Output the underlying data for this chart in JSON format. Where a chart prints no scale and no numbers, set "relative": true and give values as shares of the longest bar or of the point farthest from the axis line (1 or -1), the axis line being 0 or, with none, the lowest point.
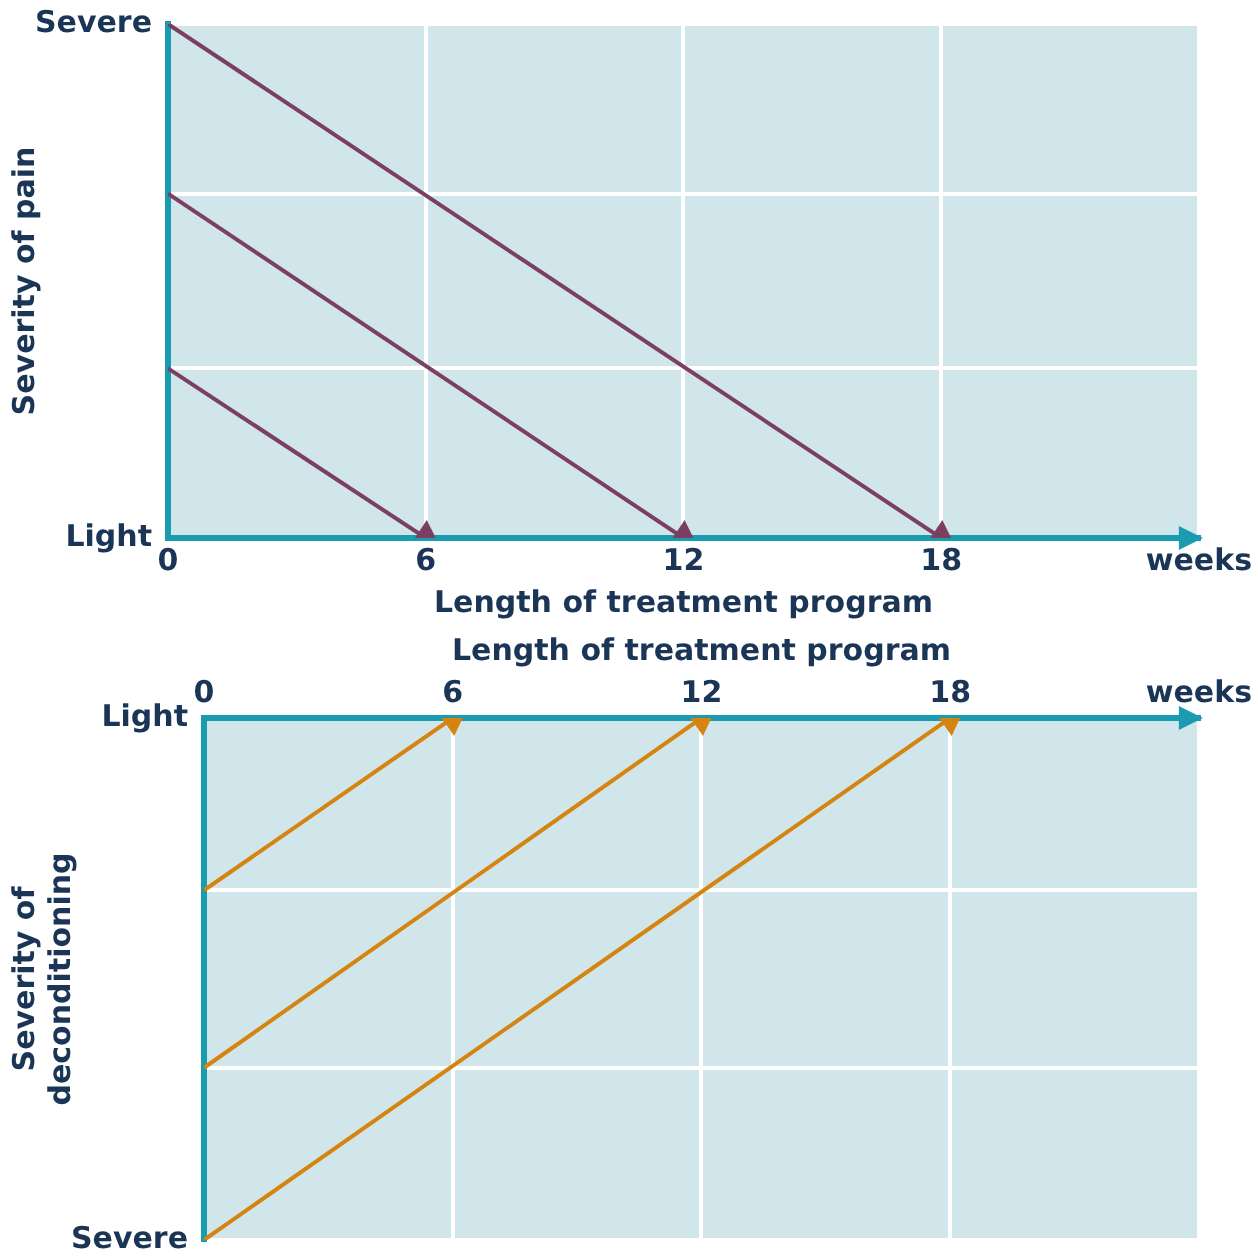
{
  "chart_data": [
    {
      "type": "line",
      "ylabel": "Severity of pain",
      "xlabel": "Length of treatment program",
      "xlim": [
        0,
        24
      ],
      "xticks": [
        0,
        6,
        12,
        18,
        {
          "value": 24,
          "label": "weeks"
        }
      ],
      "relative": true,
      "grid": true,
      "legend": false,
      "marker": "triangle",
      "line_style": "solid",
      "annotations": [
        "Severe",
        "Light"
      ],
      "series": [
        {
          "color": "#7b3f61",
          "x": [
            0,
            6
          ],
          "values": [
            0.33,
            0
          ]
        },
        {
          "color": "#7b3f61",
          "x": [
            0,
            12
          ],
          "values": [
            0.67,
            0
          ]
        },
        {
          "color": "#7b3f61",
          "x": [
            0,
            18
          ],
          "values": [
            1,
            0
          ]
        }
      ]
    },
    {
      "type": "line",
      "ylabel": "Severity of\ndeconditioning",
      "xlabel": "Length of treatment program",
      "xlim": [
        0,
        24
      ],
      "xticks": [
        0,
        6,
        12,
        18,
        {
          "value": 24,
          "label": "weeks"
        }
      ],
      "relative": true,
      "grid": true,
      "legend": false,
      "marker": "triangle",
      "line_style": "solid",
      "annotations": [
        "Light",
        "Severe"
      ],
      "series": [
        {
          "color": "#d4840f",
          "x": [
            0,
            6
          ],
          "values": [
            -0.33,
            0
          ]
        },
        {
          "color": "#d4840f",
          "x": [
            0,
            12
          ],
          "values": [
            -0.67,
            0
          ]
        },
        {
          "color": "#d4840f",
          "x": [
            0,
            18
          ],
          "values": [
            -1,
            0
          ]
        }
      ]
    }
  ]
}
